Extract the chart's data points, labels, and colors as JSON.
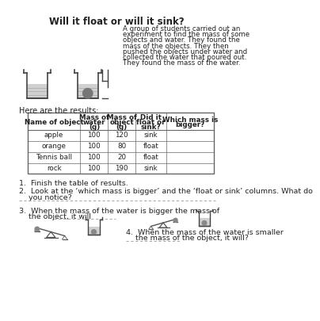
{
  "title": "Will it float or will it sink?",
  "intro_text": [
    "A group of students carried out an",
    "experiment to find the mass of some",
    "objects and water. They found the",
    "mass of the objects. They then",
    "pushed the objects under water and",
    "collected the water that poured out.",
    "They found the mass of the water."
  ],
  "here_text": "Here are the results:",
  "table_headers": [
    "Name of object",
    "Mass of\nwater\n(g)",
    "Mass of\nobject\n(g)",
    "Did it\nfloat or\nsink?",
    "Which mass is\nbigger?"
  ],
  "table_rows": [
    [
      "apple",
      "100",
      "120",
      "sink",
      ""
    ],
    [
      "orange",
      "100",
      "80",
      "float",
      ""
    ],
    [
      "Tennis ball",
      "100",
      "20",
      "float",
      ""
    ],
    [
      "rock",
      "100",
      "190",
      "sink",
      ""
    ]
  ],
  "q1": "1.  Finish the table of results.",
  "q2a": "2.  Look at the ‘which mass is bigger’ and the ‘float or sink’ columns. What do",
  "q2b": "    you notice?",
  "q3a": "3.  When the mass of the water is bigger the mass of",
  "q3b": "    the object, it will ",
  "q4a": "4.  When the mass of the water is smaller",
  "q4b": "    the mass of the object, it will?",
  "bg_color": "#ffffff",
  "text_color": "#222222",
  "table_border_color": "#666666",
  "line_color": "#999999"
}
